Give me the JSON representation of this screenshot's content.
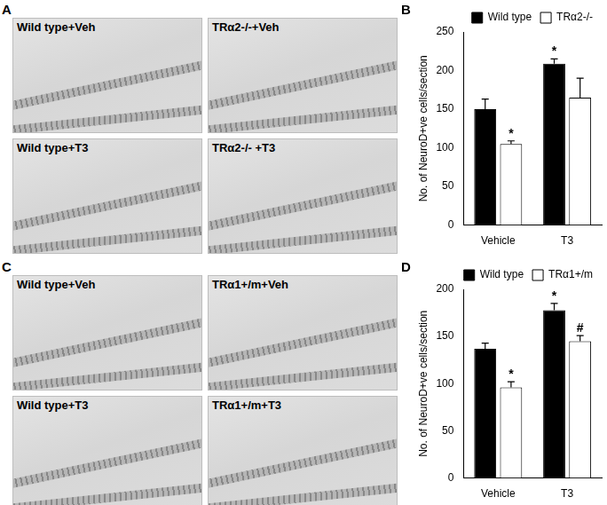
{
  "image_panels": [
    {
      "title": "A",
      "images": [
        "Wild type+Veh",
        "TRα2-/-+Veh",
        "Wild type+T3",
        "TRα2-/- +T3"
      ]
    },
    {
      "title": "C",
      "images": [
        "Wild type+Veh",
        "TRα1+/m+Veh",
        "Wild type+T3",
        "TRα1+/m+T3"
      ]
    }
  ],
  "chart_data": [
    {
      "type": "bar",
      "title": "B",
      "y_label": "No. of NeuroD+ve cells/section",
      "categories": [
        "Vehicle",
        "T3"
      ],
      "series": [
        {
          "name": "Wild type",
          "color": "#000000",
          "values": [
            150,
            209
          ],
          "errors": [
            13,
            6
          ],
          "annotations": [
            null,
            "*"
          ]
        },
        {
          "name": "TRα2-/-",
          "color": "#ffffff",
          "values": [
            105,
            165
          ],
          "errors": [
            4,
            25
          ],
          "annotations": [
            "*",
            null
          ]
        }
      ],
      "ylim": [
        0,
        250
      ],
      "yticks": [
        0,
        50,
        100,
        150,
        200,
        250
      ],
      "grid": false,
      "legend": "upper right"
    },
    {
      "type": "bar",
      "title": "D",
      "y_label": "No. of NeuroD+ve cells/section",
      "categories": [
        "Vehicle",
        "T3"
      ],
      "series": [
        {
          "name": "Wild type",
          "color": "#000000",
          "values": [
            137,
            178
          ],
          "errors": [
            6,
            7
          ],
          "annotations": [
            null,
            "*"
          ]
        },
        {
          "name": "TRα1+/m",
          "color": "#ffffff",
          "values": [
            96,
            145
          ],
          "errors": [
            6,
            6
          ],
          "annotations": [
            "*",
            "#"
          ]
        }
      ],
      "ylim": [
        0,
        200
      ],
      "yticks": [
        0,
        50,
        100,
        150,
        200
      ],
      "grid": false,
      "legend": "upper right"
    }
  ]
}
